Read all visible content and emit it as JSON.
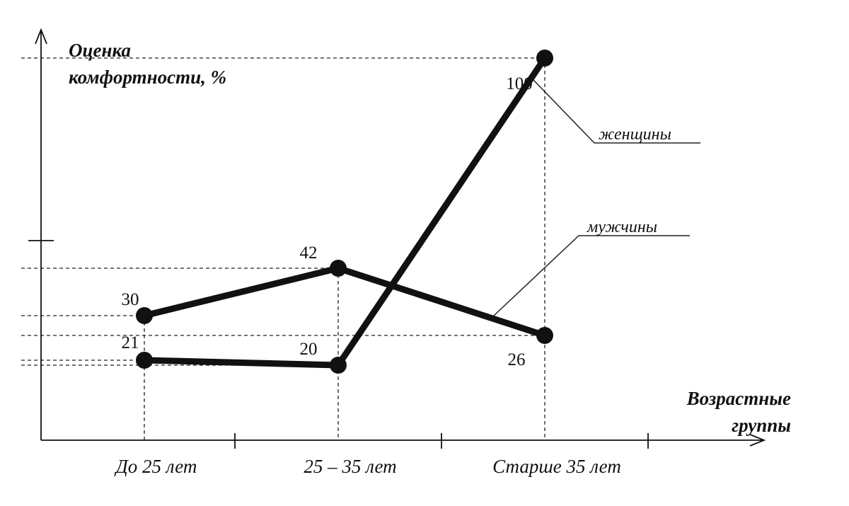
{
  "chart_data": {
    "type": "line",
    "ylabel_line1": "Оценка",
    "ylabel_line2": "комфортности, %",
    "xlabel_line1": "Возрастные",
    "xlabel_line2": "группы",
    "categories": [
      "До 25 лет",
      "25 – 35 лет",
      "Старше 35 лет"
    ],
    "ylim": [
      0,
      100
    ],
    "grid": false,
    "series": [
      {
        "name": "женщины",
        "values": [
          21,
          20,
          100
        ]
      },
      {
        "name": "мужчины",
        "values": [
          30,
          42,
          26
        ]
      }
    ]
  }
}
